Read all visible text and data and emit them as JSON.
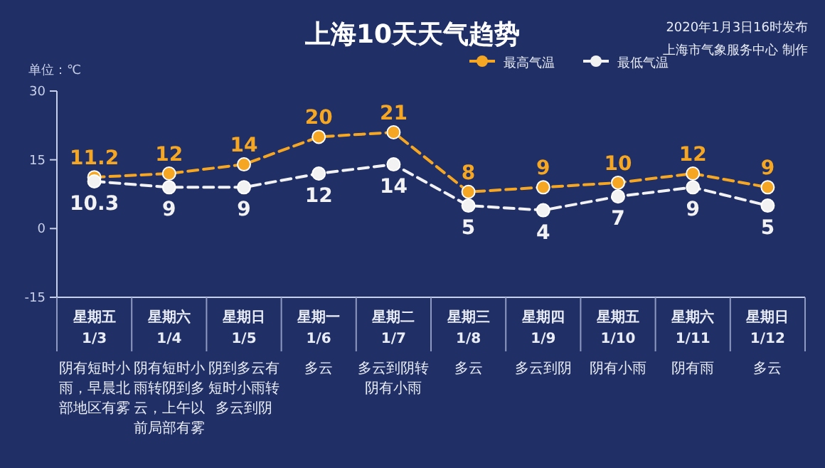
{
  "chart_data": {
    "type": "line",
    "title": "上海10天天气趋势",
    "ylabel": "单位：℃",
    "categories": [
      "星期五 1/3",
      "星期六 1/4",
      "星期日 1/5",
      "星期一 1/6",
      "星期二 1/7",
      "星期三 1/8",
      "星期四 1/9",
      "星期五 1/10",
      "星期六 1/11",
      "星期日 1/12"
    ],
    "series": [
      {
        "name": "最高气温",
        "color": "#f5a623",
        "values": [
          11.2,
          12,
          14,
          20,
          21,
          8,
          9,
          10,
          12,
          9
        ]
      },
      {
        "name": "最低气温",
        "color": "#f2f2f2",
        "values": [
          10.3,
          9,
          9,
          12,
          14,
          5,
          4,
          7,
          9,
          5
        ]
      }
    ],
    "ylim": [
      -15,
      30
    ],
    "yticks": [
      -15,
      0,
      15,
      30
    ],
    "grid": false,
    "legend": "top right",
    "marker": "circle",
    "line_style": "dashed",
    "data_labels": true,
    "annotations": [
      "2020年1月3日16时发布",
      "上海市气象服务中心 制作",
      "阴有短时小雨，早晨北部地区有雾",
      "阴有短时小雨转阴到多云，上午以前局部有雾",
      "阴到多云有短时小雨转多云到阴",
      "多云",
      "多云到阴转阴有小雨",
      "多云",
      "多云到阴",
      "阴有小雨",
      "阴有雨",
      "多云"
    ]
  }
}
